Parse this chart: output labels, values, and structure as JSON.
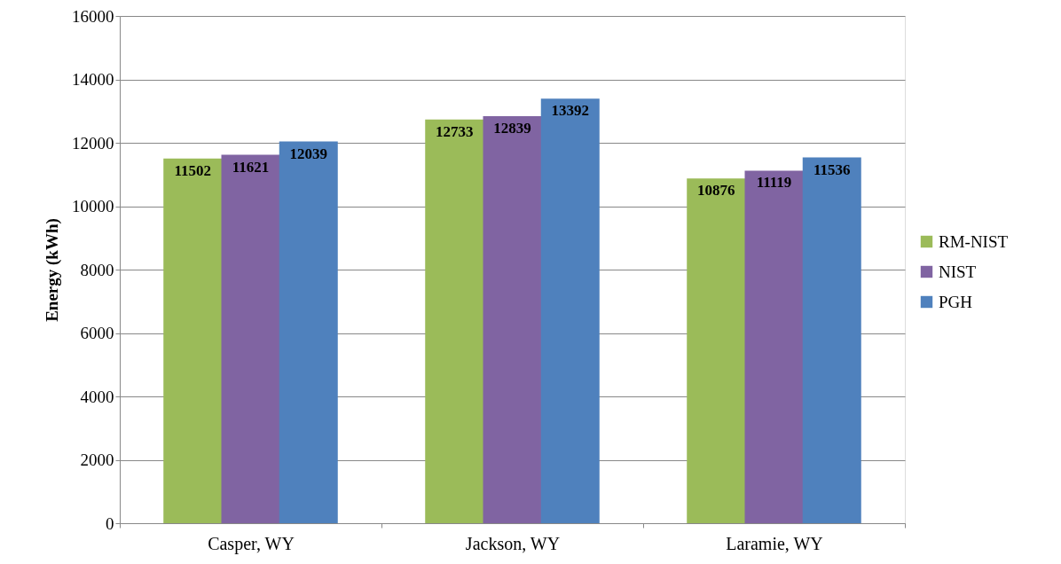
{
  "chart_data": {
    "type": "bar",
    "ylabel": "Energy (kWh)",
    "categories": [
      "Casper, WY",
      "Jackson, WY",
      "Laramie, WY"
    ],
    "series": [
      {
        "name": "RM-NIST",
        "color": "#9bbb59",
        "values": [
          11502,
          12733,
          10876
        ]
      },
      {
        "name": "NIST",
        "color": "#8064a2",
        "values": [
          11621,
          12839,
          11119
        ]
      },
      {
        "name": "PGH",
        "color": "#4f81bd",
        "values": [
          12039,
          13392,
          11536
        ]
      }
    ],
    "ylim": [
      0,
      16000
    ],
    "yticks": [
      0,
      2000,
      4000,
      6000,
      8000,
      10000,
      12000,
      14000,
      16000
    ],
    "grid": "y",
    "legend": "right",
    "data_labels": true
  }
}
